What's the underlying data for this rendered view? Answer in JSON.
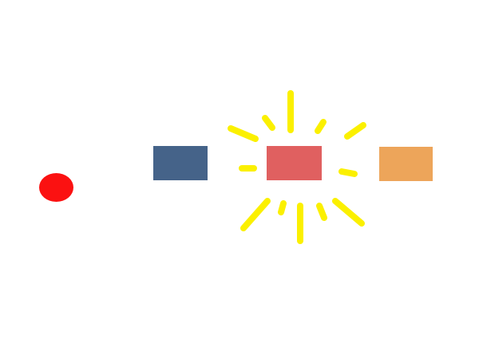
{
  "scene": {
    "background_color": "#ffffff",
    "player": {
      "shape": "circle",
      "color": "#fb1111"
    },
    "blocks": [
      {
        "id": "blue",
        "color": "#456389"
      },
      {
        "id": "red",
        "color": "#e06060",
        "highlighted": true
      },
      {
        "id": "orange",
        "color": "#eda55a"
      }
    ],
    "highlight_effect": {
      "type": "sparkle-burst",
      "color": "#fbf000",
      "target": "red"
    }
  }
}
